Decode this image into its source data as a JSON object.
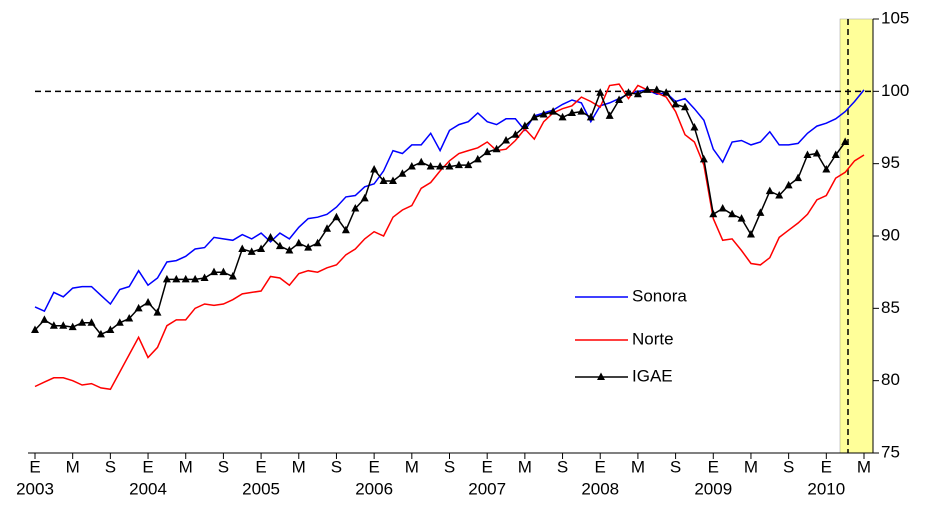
{
  "chart_data": {
    "type": "line",
    "categories": [
      "E",
      null,
      null,
      null,
      "M",
      null,
      null,
      null,
      "S",
      null,
      null,
      null,
      "E",
      null,
      null,
      null,
      "M",
      null,
      null,
      null,
      "S",
      null,
      null,
      null,
      "E",
      null,
      null,
      null,
      "M",
      null,
      null,
      null,
      "S",
      null,
      null,
      null,
      "E",
      null,
      null,
      null,
      "M",
      null,
      null,
      null,
      "S",
      null,
      null,
      null,
      "E",
      null,
      null,
      null,
      "M",
      null,
      null,
      null,
      "S",
      null,
      null,
      null,
      "E",
      null,
      null,
      null,
      "M",
      null,
      null,
      null,
      "S",
      null,
      null,
      null,
      "E",
      null,
      null,
      null,
      "M",
      null,
      null,
      null,
      "S",
      null,
      null,
      null,
      "E",
      null,
      null,
      null,
      "M"
    ],
    "year_labels": [
      "2003",
      "2004",
      "2005",
      "2006",
      "2007",
      "2008",
      "2009",
      "2010"
    ],
    "series": [
      {
        "name": "Sonora",
        "color": "#0000ff",
        "marker": null,
        "values": [
          85.1,
          84.8,
          86.1,
          85.8,
          86.4,
          86.5,
          86.5,
          85.9,
          85.3,
          86.3,
          86.5,
          87.6,
          86.6,
          87.1,
          88.2,
          88.3,
          88.6,
          89.1,
          89.2,
          89.9,
          89.8,
          89.7,
          90.1,
          89.8,
          90.2,
          89.6,
          90.2,
          89.8,
          90.6,
          91.2,
          91.3,
          91.5,
          92.0,
          92.7,
          92.8,
          93.4,
          93.6,
          94.5,
          95.9,
          95.7,
          96.3,
          96.3,
          97.1,
          95.9,
          97.3,
          97.7,
          97.9,
          98.5,
          97.9,
          97.7,
          98.1,
          98.1,
          97.3,
          98.3,
          98.5,
          98.7,
          99.1,
          99.4,
          99.2,
          97.9,
          99.0,
          99.2,
          99.5,
          99.8,
          100.0,
          100.1,
          99.8,
          99.9,
          99.3,
          99.5,
          98.8,
          98.0,
          96.0,
          95.1,
          96.5,
          96.6,
          96.3,
          96.5,
          97.2,
          96.3,
          96.3,
          96.4,
          97.1,
          97.6,
          97.8,
          98.1,
          98.6,
          99.3,
          100.1
        ]
      },
      {
        "name": "Norte",
        "color": "#ff0000",
        "marker": null,
        "values": [
          79.6,
          79.9,
          80.2,
          80.2,
          80.0,
          79.7,
          79.8,
          79.5,
          79.4,
          80.6,
          81.8,
          83.0,
          81.6,
          82.3,
          83.8,
          84.2,
          84.2,
          85.0,
          85.3,
          85.2,
          85.3,
          85.6,
          86.0,
          86.1,
          86.2,
          87.2,
          87.1,
          86.6,
          87.4,
          87.6,
          87.5,
          87.8,
          88.0,
          88.7,
          89.1,
          89.8,
          90.3,
          90.0,
          91.3,
          91.8,
          92.1,
          93.3,
          93.7,
          94.5,
          95.2,
          95.7,
          95.9,
          96.1,
          96.5,
          95.9,
          96.0,
          96.6,
          97.4,
          96.7,
          97.9,
          98.5,
          98.8,
          99.0,
          99.6,
          99.3,
          98.9,
          100.4,
          100.5,
          99.5,
          100.4,
          100.1,
          99.9,
          99.6,
          98.6,
          97.0,
          96.5,
          94.9,
          91.2,
          89.7,
          89.8,
          89.0,
          88.1,
          88.0,
          88.5,
          89.9,
          90.4,
          90.9,
          91.5,
          92.5,
          92.8,
          94.0,
          94.4,
          95.2,
          95.6
        ]
      },
      {
        "name": "IGAE",
        "color": "#000000",
        "marker": "triangle",
        "values": [
          83.5,
          84.2,
          83.8,
          83.8,
          83.7,
          84.0,
          84.0,
          83.2,
          83.5,
          84.0,
          84.3,
          85.0,
          85.4,
          84.7,
          87.0,
          87.0,
          87.0,
          87.0,
          87.1,
          87.5,
          87.5,
          87.2,
          89.1,
          88.9,
          89.1,
          89.9,
          89.3,
          89.0,
          89.5,
          89.2,
          89.5,
          90.5,
          91.3,
          90.4,
          91.9,
          92.6,
          94.6,
          93.8,
          93.8,
          94.3,
          94.8,
          95.1,
          94.8,
          94.8,
          94.8,
          94.9,
          94.9,
          95.3,
          95.8,
          96.0,
          96.6,
          97.0,
          97.6,
          98.2,
          98.4,
          98.6,
          98.2,
          98.5,
          98.6,
          98.2,
          99.9,
          98.3,
          99.4,
          99.9,
          99.8,
          100.1,
          100.1,
          99.9,
          99.1,
          98.9,
          97.5,
          95.3,
          91.5,
          91.9,
          91.5,
          91.2,
          90.1,
          91.6,
          93.1,
          92.8,
          93.5,
          94.0,
          95.6,
          95.7,
          94.6,
          95.6,
          96.5,
          null,
          null
        ]
      }
    ],
    "reference_line": 100,
    "ylim": [
      75,
      105
    ],
    "yticks": [
      75,
      80,
      85,
      90,
      95,
      100,
      105
    ]
  }
}
